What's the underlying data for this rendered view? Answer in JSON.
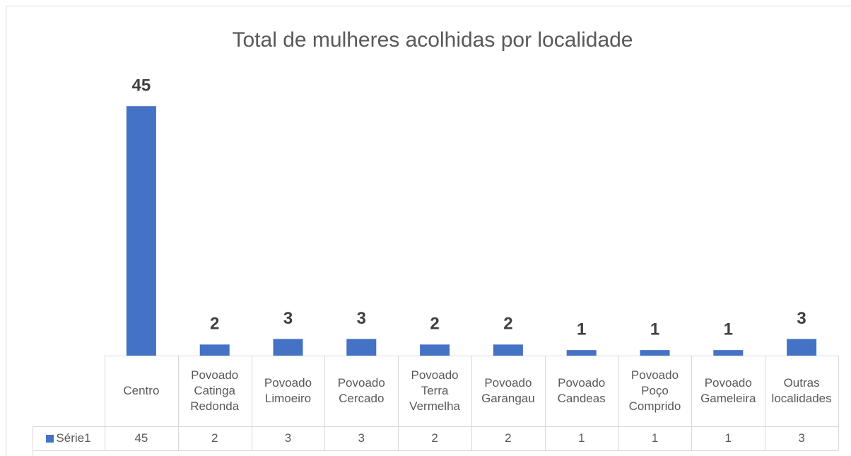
{
  "chart_data": {
    "type": "bar",
    "title": "Total de mulheres acolhidas por localidade",
    "categories": [
      "Centro",
      "Povoado Catinga Redonda",
      "Povoado Limoeiro",
      "Povoado Cercado",
      "Povoado Terra Vermelha",
      "Povoado Garangau",
      "Povoado Candeas",
      "Povoado Poço Comprido",
      "Povoado Gameleira",
      "Outras localidades"
    ],
    "series": [
      {
        "name": "Série1",
        "color": "#4472c4",
        "values": [
          45,
          2,
          3,
          3,
          2,
          2,
          1,
          1,
          1,
          3
        ]
      }
    ],
    "ylim": [
      0,
      50
    ],
    "grid": false,
    "data_table": true
  }
}
